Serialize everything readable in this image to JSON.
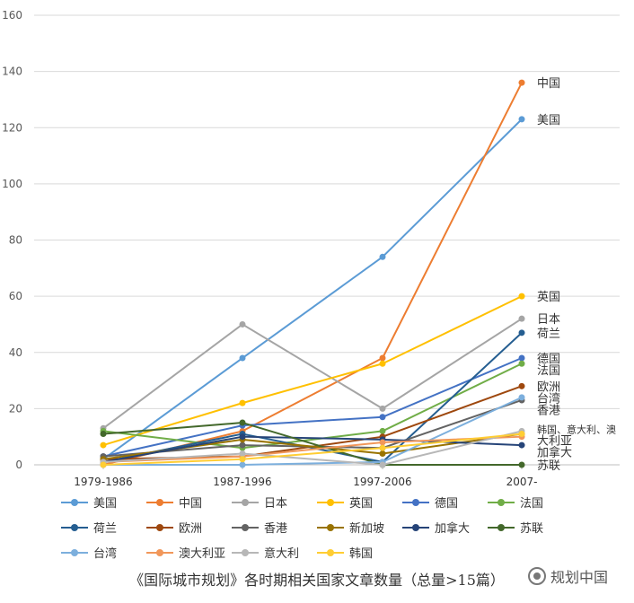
{
  "chart_data": {
    "type": "line",
    "title": "",
    "xlabel": "",
    "ylabel": "",
    "categories": [
      "1979-1986",
      "1987-1996",
      "1997-2006",
      "2007-"
    ],
    "ylim": [
      0,
      160
    ],
    "yticks": [
      0,
      20,
      40,
      60,
      80,
      100,
      120,
      140,
      160
    ],
    "grid": "horizontal",
    "legend_position": "bottom",
    "series": [
      {
        "name": "美国",
        "color": "#5B9BD5",
        "values": [
          2,
          38,
          74,
          123
        ],
        "end_label": "美国"
      },
      {
        "name": "中国",
        "color": "#ED7D31",
        "values": [
          0,
          12,
          38,
          136
        ],
        "end_label": "中国"
      },
      {
        "name": "日本",
        "color": "#A5A5A5",
        "values": [
          13,
          50,
          20,
          52
        ],
        "end_label": "日本"
      },
      {
        "name": "英国",
        "color": "#FFC000",
        "values": [
          7,
          22,
          36,
          60
        ],
        "end_label": "英国"
      },
      {
        "name": "德国",
        "color": "#4472C4",
        "values": [
          3,
          14,
          17,
          38
        ],
        "end_label": "德国"
      },
      {
        "name": "法国",
        "color": "#70AD47",
        "values": [
          12,
          6,
          12,
          36
        ],
        "end_label": "法国"
      },
      {
        "name": "荷兰",
        "color": "#255E91",
        "values": [
          1,
          11,
          1,
          47
        ],
        "end_label": "荷兰"
      },
      {
        "name": "欧洲",
        "color": "#9E480E",
        "values": [
          2,
          3,
          10,
          28
        ],
        "end_label": "欧洲"
      },
      {
        "name": "香港",
        "color": "#636363",
        "values": [
          3,
          7,
          6,
          23
        ],
        "end_label": "香港"
      },
      {
        "name": "新加坡",
        "color": "#997300",
        "values": [
          2,
          9,
          4,
          11
        ],
        "end_label": ""
      },
      {
        "name": "加拿大",
        "color": "#264478",
        "values": [
          1,
          10,
          9,
          7
        ],
        "end_label": "加拿大"
      },
      {
        "name": "苏联",
        "color": "#43682B",
        "values": [
          11,
          15,
          0,
          0
        ],
        "end_label": "苏联"
      },
      {
        "name": "台湾",
        "color": "#7CAFDD",
        "values": [
          0,
          0,
          1,
          24
        ],
        "end_label": "台湾"
      },
      {
        "name": "澳大利亚",
        "color": "#F1975A",
        "values": [
          1,
          3,
          8,
          10
        ],
        "end_label": "大利亚"
      },
      {
        "name": "意大利",
        "color": "#B7B7B7",
        "values": [
          1,
          4,
          0,
          12
        ],
        "end_label": ""
      },
      {
        "name": "韩国",
        "color": "#FFCD33",
        "values": [
          0,
          2,
          6,
          11
        ],
        "end_label": ""
      }
    ],
    "extra_end_labels": [
      {
        "text": "韩国、意大利、澳",
        "value": 13
      }
    ],
    "caption": "《国际城市规划》各时期相关国家文章数量（总量>15篇）"
  },
  "watermark": {
    "text": "规划中国"
  }
}
